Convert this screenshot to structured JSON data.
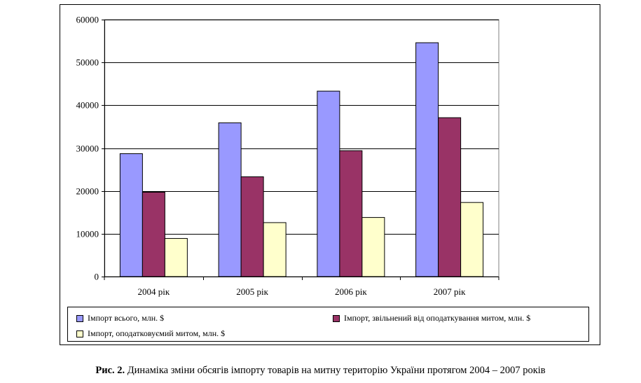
{
  "chart_data": {
    "type": "bar",
    "categories": [
      "2004 рік",
      "2005 рік",
      "2006 рік",
      "2007 рік"
    ],
    "series": [
      {
        "name": "Імпорт всього, млн. $",
        "values": [
          28700,
          35900,
          43300,
          54600
        ],
        "color": "#9999ff"
      },
      {
        "name": "Імпорт, звільнений від оподаткування митом, млн. $",
        "values": [
          19700,
          23300,
          29400,
          37100
        ],
        "color": "#993366"
      },
      {
        "name": "Імпорт, оподатковуємий митом, млн. $",
        "values": [
          8900,
          12600,
          13800,
          17300
        ],
        "color": "#ffffcc"
      }
    ],
    "yticks": [
      "0",
      "10000",
      "20000",
      "30000",
      "40000",
      "50000",
      "60000"
    ],
    "ylim": [
      0,
      60000
    ],
    "grid": true,
    "legend_position": "bottom"
  },
  "caption": {
    "label": "Рис. 2.",
    "text": " Динаміка зміни обсягів імпорту товарів на митну територію України протягом 2004 – 2007 років"
  }
}
